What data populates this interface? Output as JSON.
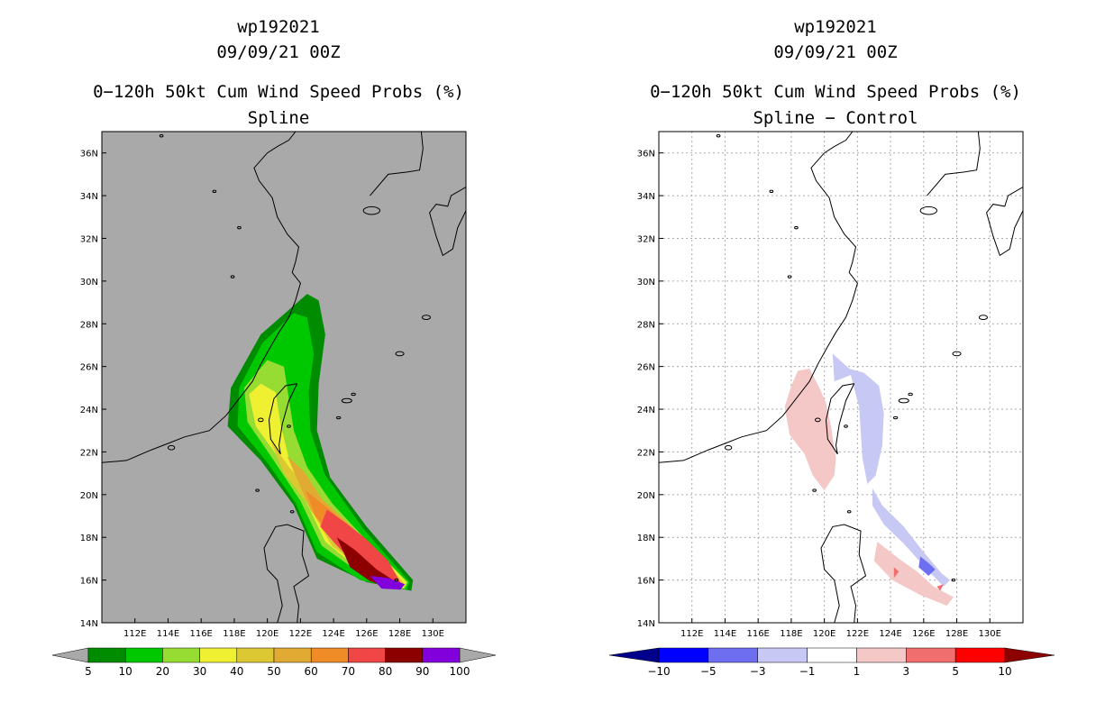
{
  "chart_data": [
    {
      "type": "heatmap",
      "storm_id": "wp192021",
      "datetime": "09/09/21 00Z",
      "title": "0−120h 50kt Cum Wind Speed Probs (%)",
      "subtitle": "Spline",
      "xlim": [
        110,
        132
      ],
      "ylim": [
        14,
        37
      ],
      "x_ticks": [
        "112E",
        "114E",
        "116E",
        "118E",
        "120E",
        "122E",
        "124E",
        "126E",
        "128E",
        "130E"
      ],
      "y_ticks": [
        "14N",
        "16N",
        "18N",
        "20N",
        "22N",
        "24N",
        "26N",
        "28N",
        "30N",
        "32N",
        "34N",
        "36N"
      ],
      "grid": false,
      "background": "#a9a9a9",
      "colorbar": {
        "labels": [
          "5",
          "10",
          "20",
          "30",
          "40",
          "50",
          "60",
          "70",
          "80",
          "90",
          "100"
        ],
        "colors": [
          "#008c00",
          "#00c800",
          "#96dc32",
          "#f0f032",
          "#dcc832",
          "#e1aa32",
          "#f08c28",
          "#f04646",
          "#8c0000",
          "#8200dc"
        ],
        "extend_color": "#a9a9a9"
      },
      "contours": [
        {
          "level": 5,
          "color": "#008c00",
          "points": [
            [
              122.4,
              29.4
            ],
            [
              123.1,
              29.1
            ],
            [
              123.5,
              27.5
            ],
            [
              123.1,
              25.2
            ],
            [
              123,
              23
            ],
            [
              123.8,
              20.8
            ],
            [
              126,
              18.5
            ],
            [
              128.8,
              16
            ],
            [
              128.7,
              15.5
            ],
            [
              126,
              15.9
            ],
            [
              123,
              17
            ],
            [
              121.6,
              19.5
            ],
            [
              119.6,
              21.6
            ],
            [
              117.6,
              23.2
            ],
            [
              117.8,
              25
            ],
            [
              119.6,
              27.5
            ]
          ]
        },
        {
          "level": 10,
          "color": "#00c800",
          "points": [
            [
              121.6,
              28.5
            ],
            [
              122.4,
              28.3
            ],
            [
              122.8,
              26.6
            ],
            [
              122.5,
              24.8
            ],
            [
              122.6,
              23
            ],
            [
              123.5,
              20.9
            ],
            [
              125.8,
              18.4
            ],
            [
              128.6,
              15.9
            ],
            [
              128.4,
              15.55
            ],
            [
              125.6,
              16
            ],
            [
              123,
              17.3
            ],
            [
              121.7,
              19.6
            ],
            [
              120,
              21.5
            ],
            [
              118.2,
              23.2
            ],
            [
              118.3,
              25
            ],
            [
              119.7,
              27.1
            ]
          ]
        },
        {
          "level": 20,
          "color": "#96dc32",
          "points": [
            [
              120,
              26.3
            ],
            [
              121,
              26
            ],
            [
              121.3,
              24.5
            ],
            [
              121.6,
              23
            ],
            [
              122.4,
              21.3
            ],
            [
              123.9,
              19.6
            ],
            [
              126.3,
              17.6
            ],
            [
              128.5,
              15.9
            ],
            [
              128.3,
              15.6
            ],
            [
              126,
              16.1
            ],
            [
              123.3,
              17.6
            ],
            [
              122,
              19.7
            ],
            [
              120.3,
              21.7
            ],
            [
              118.8,
              23.4
            ],
            [
              118.6,
              25
            ]
          ]
        },
        {
          "level": 30,
          "color": "#f0f032",
          "points": [
            [
              119.6,
              25.2
            ],
            [
              120.5,
              24.8
            ],
            [
              120.8,
              23.3
            ],
            [
              121.3,
              21.7
            ],
            [
              122.6,
              20.3
            ],
            [
              124.5,
              18.9
            ],
            [
              126.6,
              17.4
            ],
            [
              128.4,
              15.9
            ],
            [
              128.2,
              15.6
            ],
            [
              126,
              16.2
            ],
            [
              123.5,
              17.8
            ],
            [
              122.2,
              19.9
            ],
            [
              120.8,
              21.6
            ],
            [
              119.3,
              23.2
            ],
            [
              118.9,
              24.7
            ]
          ]
        },
        {
          "level": 40,
          "color": "#dcc832",
          "points": [
            [
              120.2,
              22.5
            ],
            [
              121.3,
              21.3
            ],
            [
              122.8,
              20
            ],
            [
              124.8,
              18.7
            ],
            [
              126.8,
              17.2
            ],
            [
              128.3,
              15.8
            ],
            [
              128.1,
              15.6
            ],
            [
              126.2,
              16.3
            ],
            [
              123.9,
              17.6
            ],
            [
              122.4,
              19.6
            ],
            [
              121,
              21
            ]
          ]
        },
        {
          "level": 50,
          "color": "#e1aa32",
          "points": [
            [
              121.2,
              21.8
            ],
            [
              122.2,
              21.1
            ],
            [
              123.3,
              19.8
            ],
            [
              125.1,
              18.5
            ],
            [
              126.9,
              17.1
            ],
            [
              128.1,
              15.8
            ],
            [
              127.9,
              15.6
            ],
            [
              126.3,
              16.3
            ],
            [
              124.2,
              17.6
            ],
            [
              122.6,
              19.3
            ]
          ]
        },
        {
          "level": 60,
          "color": "#f08c28",
          "points": [
            [
              122.3,
              20.2
            ],
            [
              123.6,
              19.4
            ],
            [
              125.4,
              18.2
            ],
            [
              127,
              17
            ],
            [
              128,
              15.8
            ],
            [
              127.8,
              15.6
            ],
            [
              126.4,
              16.3
            ],
            [
              124.4,
              17.5
            ],
            [
              122.9,
              19
            ]
          ]
        },
        {
          "level": 70,
          "color": "#f04646",
          "points": [
            [
              123.6,
              19.3
            ],
            [
              124.7,
              18.7
            ],
            [
              126,
              17.9
            ],
            [
              127.3,
              16.9
            ],
            [
              128.1,
              15.8
            ],
            [
              127.7,
              15.6
            ],
            [
              126.4,
              16.2
            ],
            [
              125.1,
              16.9
            ],
            [
              124.1,
              17.7
            ],
            [
              123.2,
              18.5
            ]
          ]
        },
        {
          "level": 80,
          "color": "#8c0000",
          "points": [
            [
              124.2,
              18
            ],
            [
              125.3,
              17.4
            ],
            [
              126.6,
              16.5
            ],
            [
              127.8,
              15.9
            ],
            [
              127.5,
              15.6
            ],
            [
              126.2,
              15.95
            ],
            [
              125,
              16.6
            ]
          ]
        },
        {
          "level": 90,
          "color": "#8200dc",
          "points": [
            [
              126.2,
              16.2
            ],
            [
              127.3,
              16.1
            ],
            [
              128.3,
              15.8
            ],
            [
              128.05,
              15.55
            ],
            [
              126.9,
              15.6
            ]
          ]
        }
      ]
    },
    {
      "type": "heatmap",
      "storm_id": "wp192021",
      "datetime": "09/09/21 00Z",
      "title": "0−120h 50kt Cum Wind Speed Probs (%)",
      "subtitle": "Spline − Control",
      "xlim": [
        110,
        132
      ],
      "ylim": [
        14,
        37
      ],
      "x_ticks": [
        "112E",
        "114E",
        "116E",
        "118E",
        "120E",
        "122E",
        "124E",
        "126E",
        "128E",
        "130E"
      ],
      "y_ticks": [
        "14N",
        "16N",
        "18N",
        "20N",
        "22N",
        "24N",
        "26N",
        "28N",
        "30N",
        "32N",
        "34N",
        "36N"
      ],
      "grid": true,
      "background": "#ffffff",
      "colorbar": {
        "labels": [
          "−10",
          "−5",
          "−3",
          "−1",
          "1",
          "3",
          "5",
          "10"
        ],
        "colors": [
          "#0000ff",
          "#6e6ef0",
          "#c8c8f5",
          "#ffffff",
          "#f5c8c8",
          "#f06e6e",
          "#ff0000"
        ],
        "extend_colors": [
          "#00008c",
          "#8c0000"
        ]
      },
      "contours": [
        {
          "level": -1,
          "color": "#c8c8f5",
          "points": [
            [
              120.5,
              26.6
            ],
            [
              121.5,
              25.9
            ],
            [
              122.4,
              25.7
            ],
            [
              123.3,
              25.1
            ],
            [
              123.6,
              23.8
            ],
            [
              123.5,
              22.3
            ],
            [
              123.1,
              20.9
            ],
            [
              122.6,
              20.5
            ],
            [
              122.3,
              21.7
            ],
            [
              122.1,
              24.1
            ],
            [
              121.6,
              25.6
            ],
            [
              120.6,
              25.3
            ]
          ]
        },
        {
          "level": -1,
          "color": "#c8c8f5",
          "points": [
            [
              122.9,
              20.3
            ],
            [
              123.5,
              19.5
            ],
            [
              124.8,
              18.5
            ],
            [
              125.9,
              17.4
            ],
            [
              127.1,
              16.3
            ],
            [
              127.6,
              16
            ],
            [
              127.2,
              15.7
            ],
            [
              126.2,
              16.5
            ],
            [
              124.8,
              17.7
            ],
            [
              123.6,
              18.6
            ],
            [
              122.9,
              19.5
            ]
          ]
        },
        {
          "level": -3,
          "color": "#6e6ef0",
          "points": [
            [
              125.8,
              17.1
            ],
            [
              126.3,
              16.8
            ],
            [
              126.7,
              16.5
            ],
            [
              126.3,
              16.2
            ],
            [
              125.7,
              16.6
            ]
          ]
        },
        {
          "level": 1,
          "color": "#f5c8c8",
          "points": [
            [
              118.4,
              25.8
            ],
            [
              119.1,
              25.9
            ],
            [
              119.7,
              25
            ],
            [
              120.1,
              24.3
            ],
            [
              120.4,
              23.2
            ],
            [
              120.7,
              21.7
            ],
            [
              120.6,
              20.9
            ],
            [
              120,
              20.2
            ],
            [
              119.3,
              20.9
            ],
            [
              118.8,
              21.9
            ],
            [
              117.9,
              22.8
            ],
            [
              117.6,
              24.1
            ],
            [
              118,
              25.1
            ]
          ]
        },
        {
          "level": 1,
          "color": "#f5c8c8",
          "points": [
            [
              123.2,
              17.8
            ],
            [
              124.5,
              17
            ],
            [
              125.6,
              16.4
            ],
            [
              126.6,
              15.7
            ],
            [
              127.8,
              15.2
            ],
            [
              127.4,
              14.8
            ],
            [
              125.8,
              15.3
            ],
            [
              124.1,
              16
            ],
            [
              123,
              16.9
            ]
          ]
        },
        {
          "level": 3,
          "color": "#f06e6e",
          "points": [
            [
              124.2,
              16.6
            ],
            [
              124.5,
              16.4
            ],
            [
              124.2,
              16.1
            ]
          ]
        },
        {
          "level": 3,
          "color": "#f06e6e",
          "points": [
            [
              126.8,
              15.7
            ],
            [
              127.2,
              15.8
            ],
            [
              127,
              15.5
            ]
          ]
        }
      ]
    }
  ]
}
